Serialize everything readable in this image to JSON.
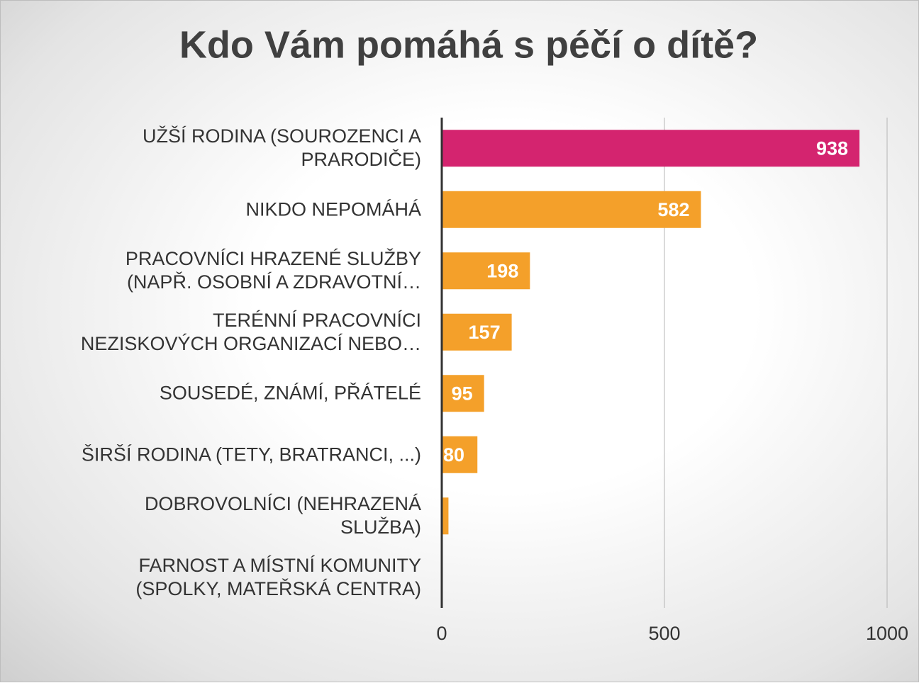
{
  "chart_data": {
    "type": "bar",
    "orientation": "horizontal",
    "title": "Kdo Vám pomáhá s péčí o dítě?",
    "categories": [
      "UŽŠÍ RODINA (SOUROZENCI A\nPRARODIČE)",
      "NIKDO NEPOMÁHÁ",
      "PRACOVNÍCI HRAZENÉ SLUŽBY\n(NAPŘ. OSOBNÍ A ZDRAVOTNÍ…",
      "TERÉNNÍ PRACOVNÍCI\nNEZISKOVÝCH ORGANIZACÍ NEBO…",
      "SOUSEDÉ, ZNÁMÍ, PŘÁTELÉ",
      "ŠIRŠÍ RODINA (TETY, BRATRANCI, ...)",
      "DOBROVOLNÍCI (NEHRAZENÁ\nSLUŽBA)",
      "FARNOST A MÍSTNÍ KOMUNITY\n(SPOLKY, MATEŘSKÁ CENTRA)"
    ],
    "values": [
      938,
      582,
      198,
      157,
      95,
      80,
      15,
      2
    ],
    "value_labels": [
      938,
      582,
      198,
      157,
      95,
      80,
      null,
      null
    ],
    "colors": [
      "#d4246f",
      "#f4a02a",
      "#f4a02a",
      "#f4a02a",
      "#f4a02a",
      "#f4a02a",
      "#f4a02a",
      "#f4a02a"
    ],
    "xlim": [
      0,
      1000
    ],
    "xticks": [
      0,
      500,
      1000
    ],
    "grid": true
  }
}
